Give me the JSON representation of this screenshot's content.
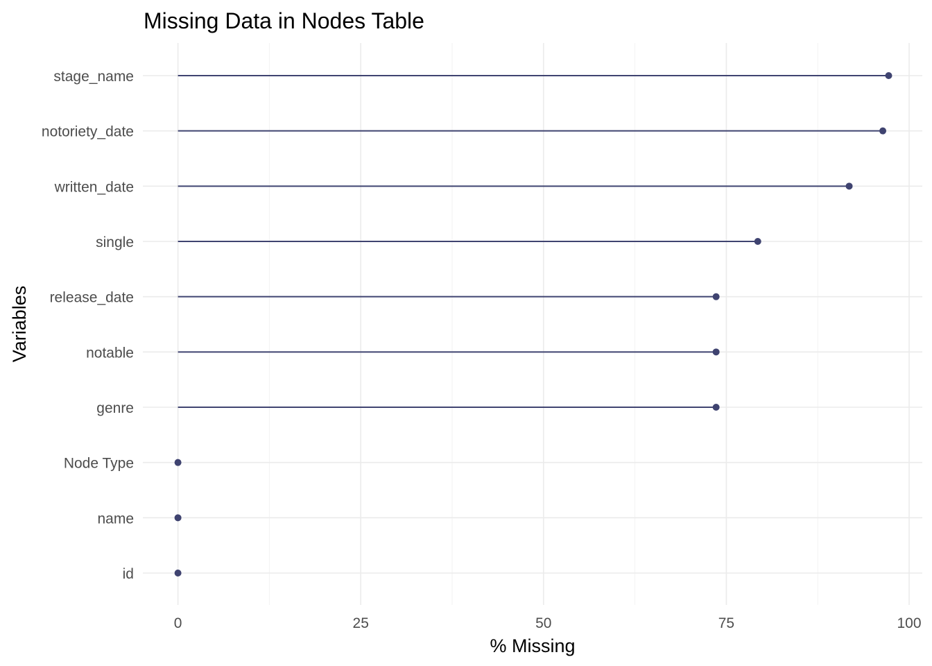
{
  "chart_data": {
    "type": "lollipop",
    "title": "Missing Data in Nodes Table",
    "xlabel": "% Missing",
    "ylabel": "Variables",
    "xlim": [
      -4.8,
      101.8
    ],
    "xticks": [
      "0",
      "25",
      "50",
      "75",
      "100"
    ],
    "grid": true,
    "legend": "none",
    "color": "#3f4370",
    "categories": [
      "stage_name",
      "notoriety_date",
      "written_date",
      "single",
      "release_date",
      "notable",
      "genre",
      "Node Type",
      "name",
      "id"
    ],
    "values": [
      97.2,
      96.4,
      91.8,
      79.3,
      73.6,
      73.6,
      73.6,
      0,
      0,
      0
    ]
  }
}
